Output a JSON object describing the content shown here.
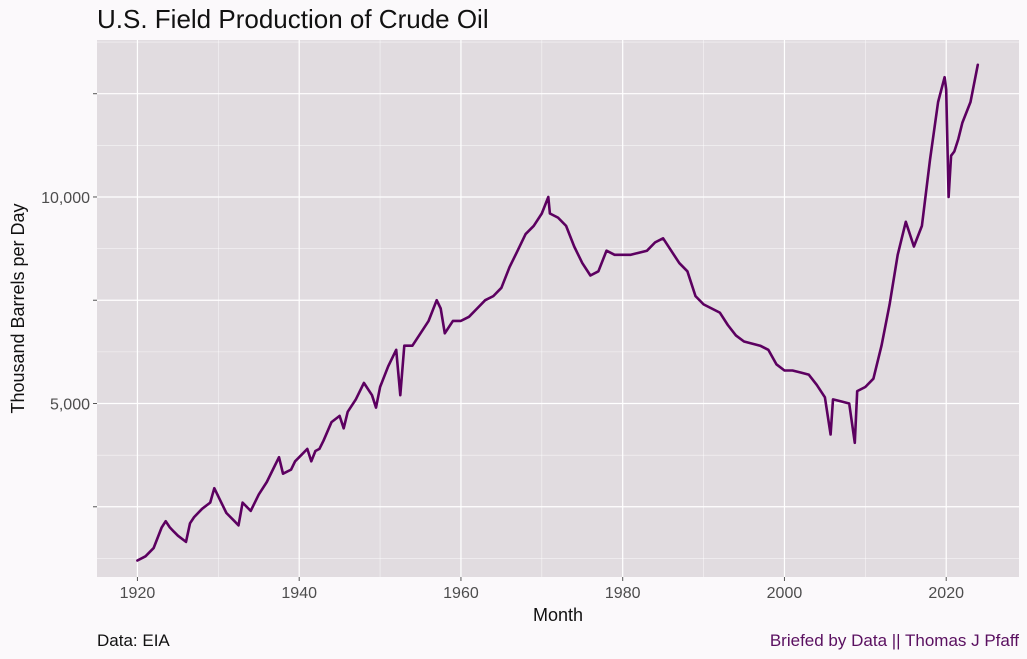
{
  "chart_data": {
    "type": "line",
    "title": "U.S. Field Production of Crude Oil",
    "xlabel": "Month",
    "ylabel": "Thousand Barrels per Day",
    "xlim": [
      1915,
      2029
    ],
    "ylim": [
      800,
      13800
    ],
    "x_ticks": [
      1920,
      1940,
      1960,
      1980,
      2000,
      2020
    ],
    "x_tick_labels": [
      "1920",
      "1940",
      "1960",
      "1980",
      "2000",
      "2020"
    ],
    "y_ticks": [
      2500,
      5000,
      7500,
      10000,
      12500
    ],
    "y_tick_labels": [
      "",
      "5,000",
      "",
      "10,000",
      ""
    ],
    "line_color": "#5c0060",
    "panel_color": "#e1dce0",
    "grid": true,
    "series": [
      {
        "x": [
          1920.0,
          1921.0,
          1922.0,
          1923.0,
          1923.5,
          1924.0,
          1924.5,
          1925.0,
          1926.0,
          1926.5,
          1927.0,
          1928.0,
          1929.0,
          1929.5,
          1930.0,
          1931.0,
          1932.0,
          1932.5,
          1933.0,
          1934.0,
          1935.0,
          1936.0,
          1937.0,
          1937.5,
          1938.0,
          1939.0,
          1939.5,
          1940.0,
          1941.0,
          1941.5,
          1942.0,
          1942.5,
          1943.0,
          1944.0,
          1945.0,
          1945.5,
          1946.0,
          1947.0,
          1948.0,
          1949.0,
          1949.5,
          1950.0,
          1951.0,
          1952.0,
          1952.5,
          1953.0,
          1954.0,
          1955.0,
          1956.0,
          1957.0,
          1957.5,
          1958.0,
          1959.0,
          1960.0,
          1961.0,
          1962.0,
          1963.0,
          1964.0,
          1965.0,
          1966.0,
          1967.0,
          1968.0,
          1969.0,
          1970.0,
          1970.8,
          1971.0,
          1972.0,
          1973.0,
          1974.0,
          1975.0,
          1976.0,
          1977.0,
          1978.0,
          1979.0,
          1980.0,
          1981.0,
          1982.0,
          1983.0,
          1984.0,
          1985.0,
          1986.0,
          1987.0,
          1988.0,
          1989.0,
          1990.0,
          1991.0,
          1992.0,
          1993.0,
          1994.0,
          1995.0,
          1996.0,
          1997.0,
          1998.0,
          1999.0,
          2000.0,
          2001.0,
          2002.0,
          2003.0,
          2004.0,
          2005.0,
          2005.7,
          2006.0,
          2007.0,
          2008.0,
          2008.7,
          2009.0,
          2010.0,
          2011.0,
          2012.0,
          2013.0,
          2014.0,
          2015.0,
          2016.0,
          2017.0,
          2018.0,
          2019.0,
          2019.8,
          2020.0,
          2020.3,
          2020.6,
          2021.0,
          2021.5,
          2022.0,
          2023.0,
          2023.9
        ],
        "y": [
          1200,
          1300,
          1500,
          2000,
          2150,
          2000,
          1900,
          1800,
          1650,
          2100,
          2250,
          2450,
          2600,
          2950,
          2750,
          2350,
          2150,
          2050,
          2600,
          2400,
          2800,
          3100,
          3500,
          3700,
          3300,
          3400,
          3600,
          3700,
          3900,
          3600,
          3850,
          3900,
          4100,
          4550,
          4700,
          4400,
          4800,
          5100,
          5500,
          5200,
          4900,
          5400,
          5900,
          6300,
          5200,
          6400,
          6400,
          6700,
          7000,
          7500,
          7300,
          6700,
          7000,
          7000,
          7100,
          7300,
          7500,
          7600,
          7800,
          8300,
          8700,
          9100,
          9300,
          9600,
          10000,
          9600,
          9500,
          9300,
          8800,
          8400,
          8100,
          8200,
          8700,
          8600,
          8600,
          8600,
          8650,
          8700,
          8900,
          9000,
          8700,
          8400,
          8200,
          7600,
          7400,
          7300,
          7200,
          6900,
          6650,
          6500,
          6450,
          6400,
          6300,
          5950,
          5800,
          5800,
          5750,
          5700,
          5450,
          5150,
          4250,
          5100,
          5050,
          5000,
          4050,
          5300,
          5400,
          5600,
          6400,
          7400,
          8600,
          9400,
          8800,
          9300,
          10900,
          12300,
          12900,
          12600,
          10000,
          11000,
          11100,
          11400,
          11800,
          12300,
          13200
        ]
      }
    ]
  },
  "captions": {
    "source": "Data: EIA",
    "credit": "Briefed by Data || Thomas J Pfaff"
  }
}
